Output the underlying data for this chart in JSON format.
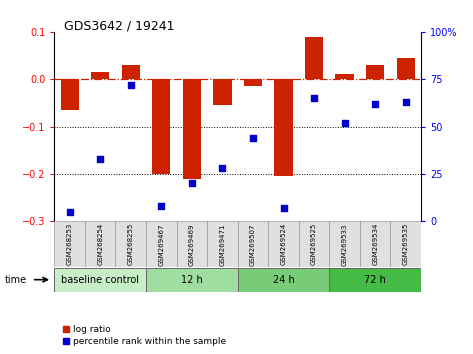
{
  "title": "GDS3642 / 19241",
  "samples": [
    "GSM268253",
    "GSM268254",
    "GSM268255",
    "GSM269467",
    "GSM269469",
    "GSM269471",
    "GSM269507",
    "GSM269524",
    "GSM269525",
    "GSM269533",
    "GSM269534",
    "GSM269535"
  ],
  "log_ratio": [
    -0.065,
    0.015,
    0.03,
    -0.2,
    -0.21,
    -0.055,
    -0.015,
    -0.205,
    0.09,
    0.01,
    0.03,
    0.045
  ],
  "percentile_rank": [
    5,
    33,
    72,
    8,
    20,
    28,
    44,
    7,
    65,
    52,
    62,
    63
  ],
  "groups": [
    {
      "label": "baseline control",
      "start": 0,
      "end": 3,
      "color": "#c8eec8"
    },
    {
      "label": "12 h",
      "start": 3,
      "end": 6,
      "color": "#a0dda0"
    },
    {
      "label": "24 h",
      "start": 6,
      "end": 9,
      "color": "#78cc78"
    },
    {
      "label": "72 h",
      "start": 9,
      "end": 12,
      "color": "#44bb44"
    }
  ],
  "bar_color": "#cc2200",
  "dot_color": "#0000cc",
  "ref_line_color": "#cc2200",
  "dotted_line_color": "#000000",
  "ylim_left": [
    -0.3,
    0.1
  ],
  "ylim_right": [
    0,
    100
  ],
  "yticks_left": [
    -0.3,
    -0.2,
    -0.1,
    0.0,
    0.1
  ],
  "yticks_right": [
    0,
    25,
    50,
    75,
    100
  ],
  "background_color": "#ffffff",
  "plot_bg_color": "#ffffff",
  "sample_box_color": "#e0e0e0",
  "sample_box_edge": "#999999"
}
